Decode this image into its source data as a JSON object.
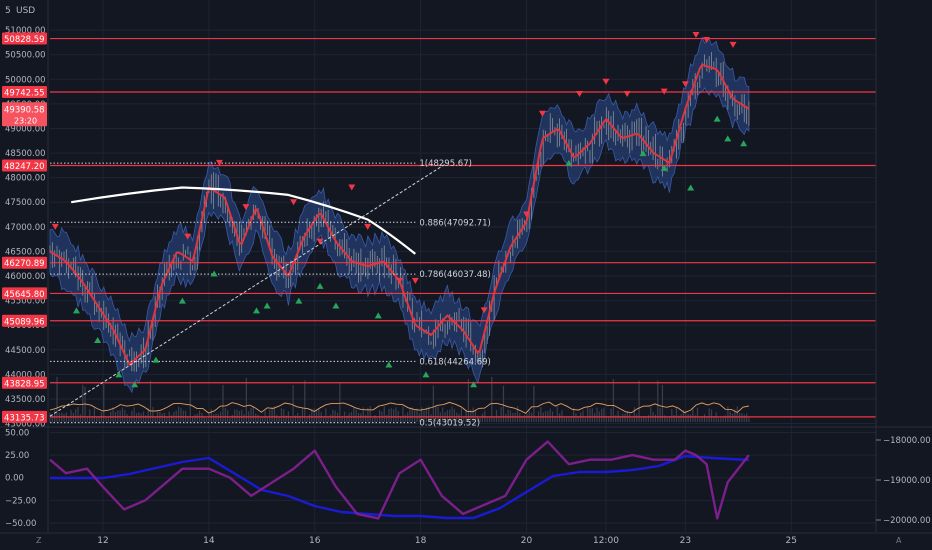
{
  "chart_data": [
    {
      "type": "line",
      "currency": "USD",
      "corner_label": "5",
      "y_ticks": [
        51000,
        50500,
        50000,
        49500,
        49000,
        48500,
        48000,
        47500,
        47000,
        46500,
        46000,
        45500,
        45000,
        44500,
        44000,
        43500,
        43000
      ],
      "y_tick_labels": [
        "51000.00",
        "50500.00",
        "50000.00",
        "49500.00",
        "49000.00",
        "48500.00",
        "48000.00",
        "47500.00",
        "47000.00",
        "46500.00",
        "46000.00",
        "45500.00",
        "45000.00",
        "44500.00",
        "44000.00",
        "43500.00",
        "43000.00"
      ],
      "ylim": [
        42950,
        51450
      ],
      "x_tick_labels": [
        "12",
        "14",
        "16",
        "18",
        "20",
        "12:00",
        "23",
        "25"
      ],
      "x_tick_values": [
        12,
        14,
        16,
        18,
        20,
        21.5,
        23,
        25
      ],
      "xlim": [
        11,
        26.6
      ],
      "horizontal_levels": [
        {
          "value": 50828.59,
          "label": "50828.59"
        },
        {
          "value": 49742.55,
          "label": "49742.55"
        },
        {
          "value": 48247.2,
          "label": "48247.20"
        },
        {
          "value": 46270.89,
          "label": "46270.89"
        },
        {
          "value": 45645.8,
          "label": "45645.80"
        },
        {
          "value": 45089.96,
          "label": "45089.96"
        },
        {
          "value": 43828.95,
          "label": "43828.95"
        },
        {
          "value": 43135.73,
          "label": "43135.73"
        }
      ],
      "current_price": {
        "value": 49390.58,
        "label": "49390.58",
        "countdown": "23:20"
      },
      "fibonacci": [
        {
          "value": 48295.67,
          "label": "1(48295.67)"
        },
        {
          "value": 47092.71,
          "label": "0.886(47092.71)"
        },
        {
          "value": 46037.48,
          "label": "0.786(46037.48)"
        },
        {
          "value": 44264.69,
          "label": "0.618(44264.69)"
        },
        {
          "value": 43019.52,
          "label": "0.5(43019.52)"
        }
      ],
      "fib_x_range": [
        14.0,
        17.9
      ],
      "trend_line": {
        "x": [
          11.0,
          18.5
        ],
        "y": [
          43150,
          48300
        ]
      },
      "arc": {
        "x": [
          11.4,
          13.5,
          15.5,
          17.0,
          17.9
        ],
        "y": [
          47500,
          47800,
          47650,
          47150,
          46450
        ]
      },
      "price_series": {
        "x": [
          11.0,
          11.3,
          11.6,
          11.9,
          12.2,
          12.5,
          12.8,
          13.1,
          13.4,
          13.7,
          14.0,
          14.3,
          14.6,
          14.9,
          15.2,
          15.5,
          15.8,
          16.1,
          16.4,
          16.7,
          17.0,
          17.3,
          17.6,
          17.9,
          18.2,
          18.5,
          18.8,
          19.1,
          19.4,
          19.7,
          20.0,
          20.3,
          20.6,
          20.9,
          21.2,
          21.5,
          21.8,
          22.1,
          22.4,
          22.7,
          23.0,
          23.3,
          23.6,
          23.9,
          24.2
        ],
        "y": [
          46500,
          46300,
          45900,
          45400,
          44900,
          44200,
          44500,
          45800,
          46500,
          46300,
          47800,
          47600,
          46600,
          47400,
          46400,
          46000,
          46800,
          47300,
          46700,
          46300,
          46200,
          46300,
          45900,
          45000,
          44800,
          45200,
          44900,
          44400,
          45700,
          46600,
          47100,
          48800,
          49000,
          48400,
          48700,
          49200,
          48800,
          48900,
          48500,
          48300,
          49400,
          50300,
          50200,
          49600,
          49400
        ]
      },
      "sell_markers": {
        "x": [
          11.1,
          13.6,
          14.2,
          14.7,
          15.6,
          16.1,
          16.7,
          17.0,
          17.6,
          17.9,
          19.2,
          20.0,
          20.3,
          21.0,
          21.5,
          21.9,
          22.6,
          23.0,
          23.2,
          23.4,
          23.9
        ],
        "y": [
          47000,
          46800,
          48300,
          47400,
          47500,
          46700,
          47800,
          47000,
          45900,
          45900,
          45300,
          47250,
          49300,
          49700,
          49950,
          49700,
          49750,
          49900,
          50900,
          50800,
          50700
        ]
      },
      "buy_markers": {
        "x": [
          11.5,
          11.9,
          12.3,
          12.6,
          13.0,
          13.5,
          14.1,
          14.9,
          15.1,
          15.7,
          16.1,
          16.4,
          17.2,
          17.4,
          18.1,
          19.0,
          20.8,
          22.2,
          22.6,
          23.1,
          23.6,
          23.8,
          24.1
        ],
        "y": [
          45300,
          44700,
          44000,
          43800,
          44300,
          45500,
          46050,
          45300,
          45400,
          45500,
          45800,
          45400,
          45200,
          44200,
          44000,
          43800,
          48300,
          48500,
          48200,
          47800,
          49200,
          48800,
          48700
        ]
      }
    },
    {
      "type": "line",
      "y_ticks": [
        50,
        25,
        0,
        -25,
        -50
      ],
      "y_tick_labels": [
        "50.00",
        "25.00",
        "0.00",
        "−25.00",
        "−50.00"
      ],
      "ylim": [
        -60,
        55
      ],
      "right_ticks": [
        -18000,
        -19000,
        -20000
      ],
      "right_tick_labels": [
        "−18000.00",
        "−19000.00",
        "−20000.00"
      ],
      "right_lim": [
        -20300,
        -17700
      ],
      "series": [
        {
          "color": "#1b1bd6",
          "axis": "right",
          "x": [
            11.0,
            12.0,
            12.5,
            13.0,
            13.5,
            14.0,
            14.5,
            15.0,
            15.5,
            16.0,
            16.5,
            17.0,
            17.5,
            18.0,
            18.5,
            19.0,
            19.5,
            20.0,
            20.5,
            21.0,
            21.5,
            22.0,
            22.5,
            23.0,
            23.5,
            24.2
          ],
          "y": [
            -18950,
            -18950,
            -18850,
            -18700,
            -18550,
            -18450,
            -18850,
            -19250,
            -19400,
            -19650,
            -19800,
            -19850,
            -19900,
            -19900,
            -19950,
            -19950,
            -19700,
            -19300,
            -18900,
            -18800,
            -18800,
            -18750,
            -18650,
            -18400,
            -18450,
            -18500
          ]
        },
        {
          "color": "#7b1f8a",
          "axis": "left",
          "x": [
            11.0,
            11.3,
            11.7,
            12.0,
            12.4,
            12.8,
            13.2,
            13.5,
            14.0,
            14.4,
            14.8,
            15.2,
            15.6,
            16.0,
            16.4,
            16.8,
            17.2,
            17.6,
            18.0,
            18.4,
            18.8,
            19.2,
            19.6,
            20.0,
            20.4,
            20.8,
            21.2,
            21.6,
            22.0,
            22.4,
            22.8,
            23.0,
            23.2,
            23.4,
            23.6,
            23.8,
            24.2
          ],
          "y": [
            20,
            5,
            10,
            -10,
            -35,
            -25,
            -5,
            10,
            10,
            0,
            -20,
            -5,
            10,
            30,
            -10,
            -40,
            -45,
            5,
            20,
            -20,
            -40,
            -30,
            -20,
            20,
            40,
            15,
            20,
            20,
            25,
            20,
            20,
            30,
            25,
            15,
            -45,
            -5,
            25
          ]
        }
      ]
    }
  ]
}
